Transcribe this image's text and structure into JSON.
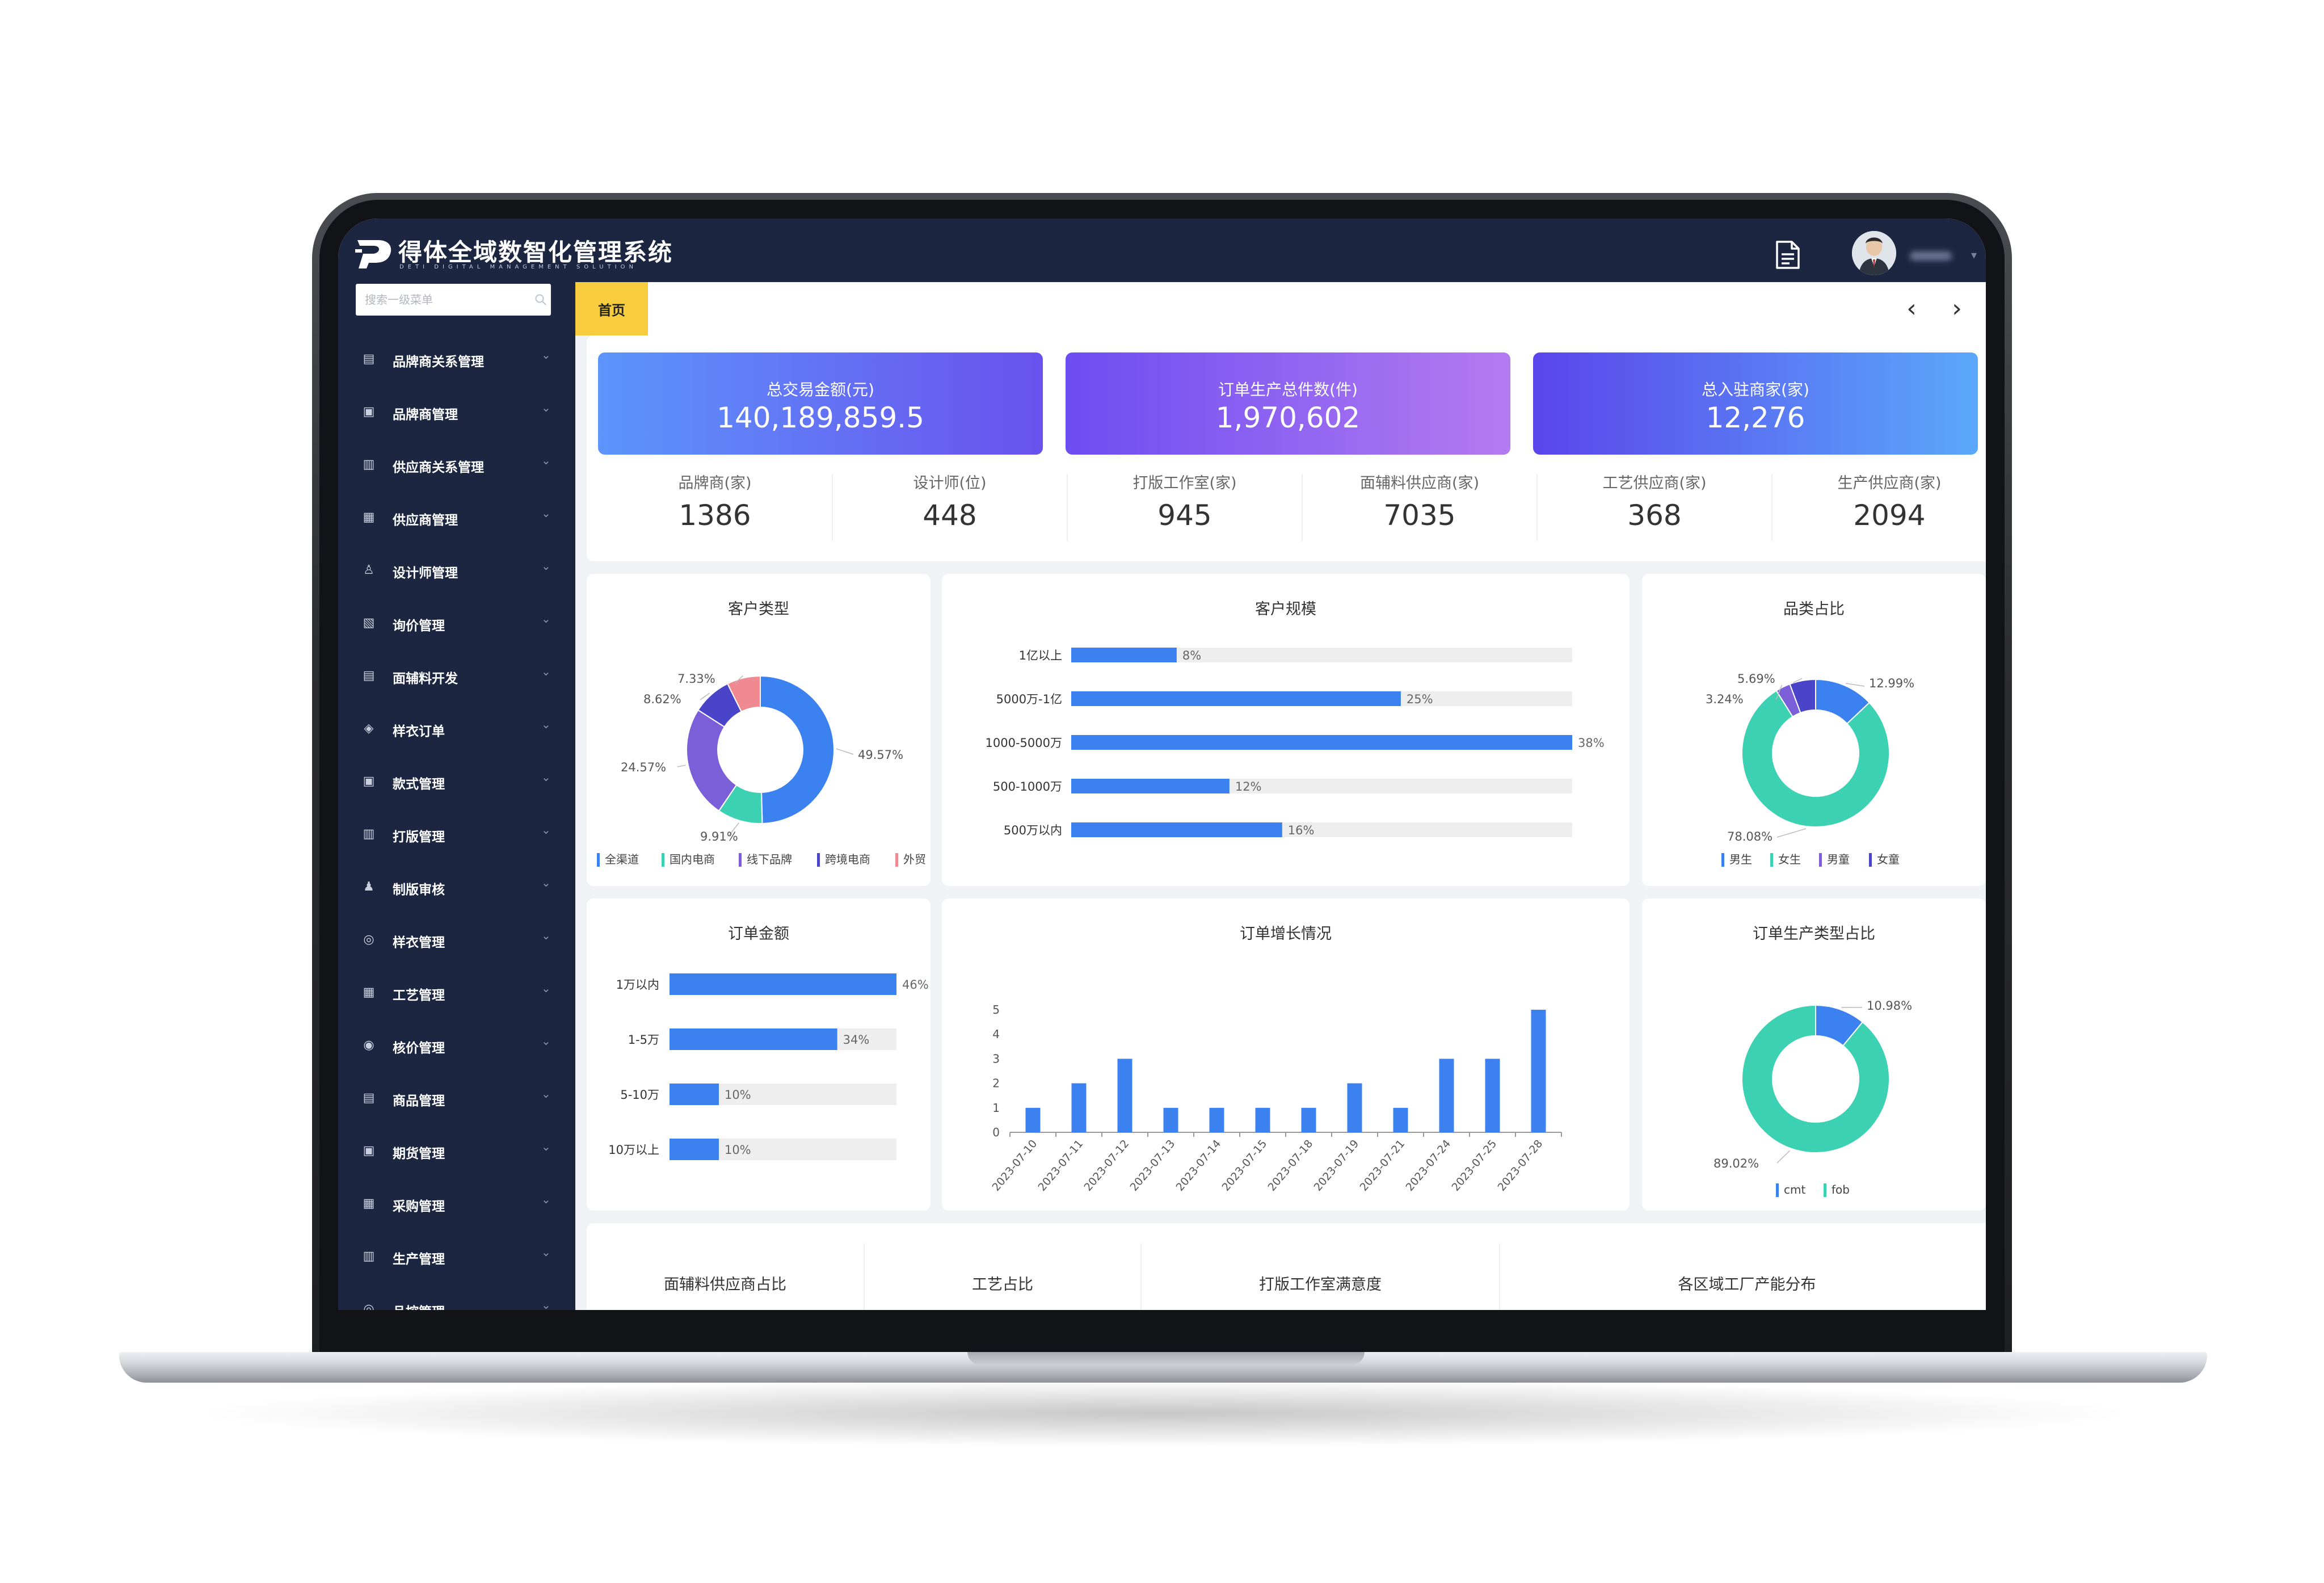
{
  "app": {
    "title": "得体全域数智化管理系统",
    "subtitle": "DETI DIGITAL MANAGEMENT SOLUTION"
  },
  "sidebar": {
    "search_placeholder": "搜索一级菜单",
    "items": [
      {
        "label": "品牌商关系管理",
        "icon": "brand-relation-icon"
      },
      {
        "label": "品牌商管理",
        "icon": "brand-icon"
      },
      {
        "label": "供应商关系管理",
        "icon": "supplier-relation-icon"
      },
      {
        "label": "供应商管理",
        "icon": "supplier-icon"
      },
      {
        "label": "设计师管理",
        "icon": "designer-icon"
      },
      {
        "label": "询价管理",
        "icon": "inquiry-icon"
      },
      {
        "label": "面辅料开发",
        "icon": "fabric-icon"
      },
      {
        "label": "样衣订单",
        "icon": "sample-order-icon"
      },
      {
        "label": "款式管理",
        "icon": "style-icon"
      },
      {
        "label": "打版管理",
        "icon": "pattern-icon"
      },
      {
        "label": "制版审核",
        "icon": "review-icon"
      },
      {
        "label": "样衣管理",
        "icon": "sample-icon"
      },
      {
        "label": "工艺管理",
        "icon": "craft-icon"
      },
      {
        "label": "核价管理",
        "icon": "pricing-icon"
      },
      {
        "label": "商品管理",
        "icon": "goods-icon"
      },
      {
        "label": "期货管理",
        "icon": "futures-icon"
      },
      {
        "label": "采购管理",
        "icon": "purchase-icon"
      },
      {
        "label": "生产管理",
        "icon": "production-icon"
      },
      {
        "label": "品控管理",
        "icon": "quality-icon"
      }
    ]
  },
  "tabs": {
    "active": "首页"
  },
  "kpis": [
    {
      "label": "总交易金额(元)",
      "value": "140,189,859.5"
    },
    {
      "label": "订单生产总件数(件)",
      "value": "1,970,602"
    },
    {
      "label": "总入驻商家(家)",
      "value": "12,276"
    }
  ],
  "stats": [
    {
      "label": "品牌商(家)",
      "value": "1386"
    },
    {
      "label": "设计师(位)",
      "value": "448"
    },
    {
      "label": "打版工作室(家)",
      "value": "945"
    },
    {
      "label": "面辅料供应商(家)",
      "value": "7035"
    },
    {
      "label": "工艺供应商(家)",
      "value": "368"
    },
    {
      "label": "生产供应商(家)",
      "value": "2094"
    }
  ],
  "panels": {
    "customer_type": "客户类型",
    "customer_scale": "客户规模",
    "category_share": "品类占比",
    "order_amount": "订单金额",
    "order_growth": "订单增长情况",
    "production_type": "订单生产类型占比",
    "bottom": [
      "面辅料供应商占比",
      "工艺占比",
      "打版工作室满意度",
      "各区域工厂产能分布"
    ]
  },
  "colors": {
    "blue": "#3b82f0",
    "teal": "#3dd1b4",
    "purple": "#7b5fd9",
    "indigo": "#4a45c8",
    "pink": "#f08a92",
    "track": "#eeeeee",
    "navy": "#1c2640",
    "yellow": "#f7cd3f"
  },
  "chart_data": [
    {
      "type": "pie",
      "donut": true,
      "title": "客户类型",
      "labels": [
        "全渠道",
        "国内电商",
        "线下品牌",
        "跨境电商",
        "外贸"
      ],
      "values": [
        49.57,
        9.91,
        24.57,
        8.62,
        7.33
      ],
      "value_labels": [
        "49.57%",
        "9.91%",
        "24.57%",
        "8.62%",
        "7.33%"
      ],
      "colors": [
        "#3b82f0",
        "#3dd1b4",
        "#7b5fd9",
        "#4a45c8",
        "#f08a92"
      ],
      "legend": "bottom"
    },
    {
      "type": "bar",
      "orientation": "horizontal",
      "title": "客户规模",
      "categories": [
        "1亿以上",
        "5000万-1亿",
        "1000-5000万",
        "500-1000万",
        "500万以内"
      ],
      "values": [
        8,
        25,
        38,
        12,
        16
      ],
      "value_labels": [
        "8%",
        "25%",
        "38%",
        "12%",
        "16%"
      ],
      "xlim": [
        0,
        38
      ]
    },
    {
      "type": "pie",
      "donut": true,
      "title": "品类占比",
      "labels": [
        "男生",
        "女生",
        "男童",
        "女童"
      ],
      "values": [
        12.99,
        78.08,
        3.24,
        5.69
      ],
      "value_labels": [
        "12.99%",
        "78.08%",
        "3.24%",
        "5.69%"
      ],
      "colors": [
        "#3b82f0",
        "#3dd1b4",
        "#7b5fd9",
        "#4a45c8"
      ],
      "legend": "bottom"
    },
    {
      "type": "bar",
      "orientation": "horizontal",
      "title": "订单金额",
      "categories": [
        "1万以内",
        "1-5万",
        "5-10万",
        "10万以上"
      ],
      "values": [
        46,
        34,
        10,
        10
      ],
      "value_labels": [
        "46%",
        "34%",
        "10%",
        "10%"
      ],
      "xlim": [
        0,
        46
      ]
    },
    {
      "type": "bar",
      "title": "订单增长情况",
      "categories": [
        "2023-07-10",
        "2023-07-11",
        "2023-07-12",
        "2023-07-13",
        "2023-07-14",
        "2023-07-15",
        "2023-07-18",
        "2023-07-19",
        "2023-07-21",
        "2023-07-24",
        "2023-07-25",
        "2023-07-28"
      ],
      "values": [
        1,
        2,
        3,
        1,
        1,
        1,
        1,
        2,
        1,
        3,
        3,
        5
      ],
      "ylim": [
        0,
        5
      ],
      "yticks": [
        "0",
        "1",
        "2",
        "3",
        "4",
        "5"
      ]
    },
    {
      "type": "pie",
      "donut": true,
      "title": "订单生产类型占比",
      "labels": [
        "cmt",
        "fob"
      ],
      "values": [
        10.98,
        89.02
      ],
      "value_labels": [
        "10.98%",
        "89.02%"
      ],
      "colors": [
        "#3b82f0",
        "#3dd1b4"
      ],
      "legend": "bottom"
    }
  ]
}
